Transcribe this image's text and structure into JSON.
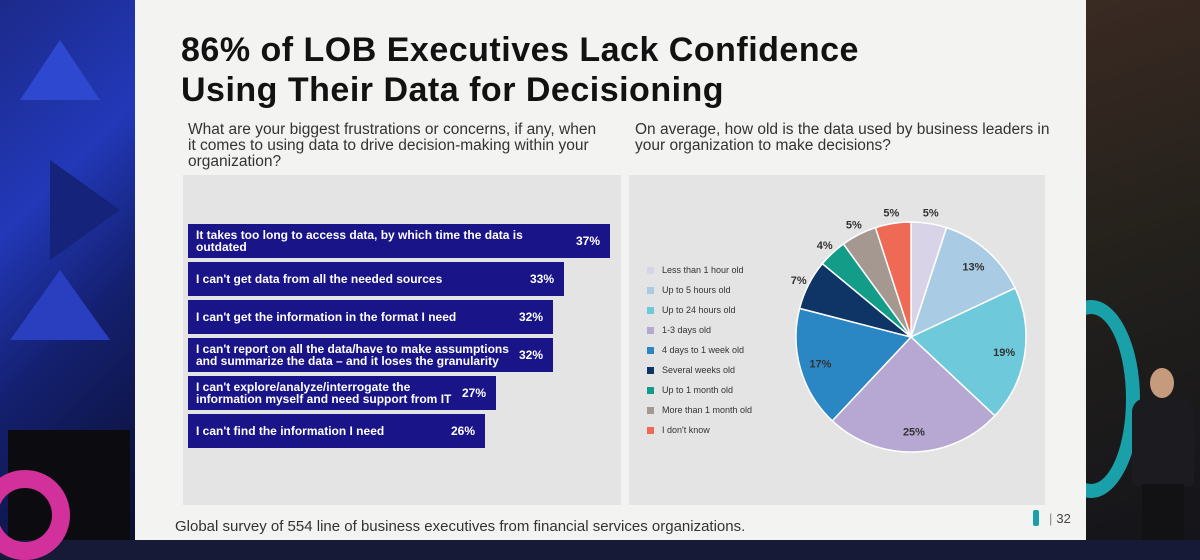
{
  "slide": {
    "title_line1": "86% of LOB Executives Lack Confidence",
    "title_line2": "Using Their Data for Decisioning",
    "footer": "Global survey of 554 line of business executives from financial services organizations.",
    "page_separator": "|",
    "page_number": "32"
  },
  "colors": {
    "bar": "#1a1489",
    "pie": [
      "#d9d3e8",
      "#a9cbe3",
      "#6ec9da",
      "#b7a8d3",
      "#2b86c4",
      "#0f3566",
      "#139c87",
      "#a49890",
      "#ee6a55"
    ]
  },
  "chart_data": [
    {
      "type": "bar",
      "orientation": "horizontal",
      "title": "What are your biggest frustrations or concerns, if any, when it comes to using data to drive decision-making within your organization?",
      "categories": [
        "It takes too long to access data, by which time the data is outdated",
        "I can't get data from all the needed sources",
        "I can't get the information in the format I need",
        "I can't report on all the data/have to make assumptions and summarize the data – and it loses the granularity",
        "I can't explore/analyze/interrogate the information myself and need support from IT",
        "I can't find the information I need"
      ],
      "values": [
        37,
        33,
        32,
        32,
        27,
        26
      ],
      "value_labels": [
        "37%",
        "33%",
        "32%",
        "32%",
        "27%",
        "26%"
      ],
      "unit": "%"
    },
    {
      "type": "pie",
      "title": "On average, how old is the data used by business leaders in your organization to make decisions?",
      "categories": [
        "Less than 1 hour old",
        "Up to 5 hours old",
        "Up to 24 hours old",
        "1-3 days old",
        "4 days to 1 week old",
        "Several weeks old",
        "Up to 1 month old",
        "More than 1 month old",
        "I don't know"
      ],
      "values": [
        5,
        13,
        19,
        25,
        17,
        7,
        4,
        5,
        5
      ],
      "value_labels": [
        "5%",
        "13%",
        "19%",
        "25%",
        "17%",
        "7%",
        "4%",
        "5%",
        "5%"
      ],
      "legend": "left",
      "unit": "%"
    }
  ]
}
